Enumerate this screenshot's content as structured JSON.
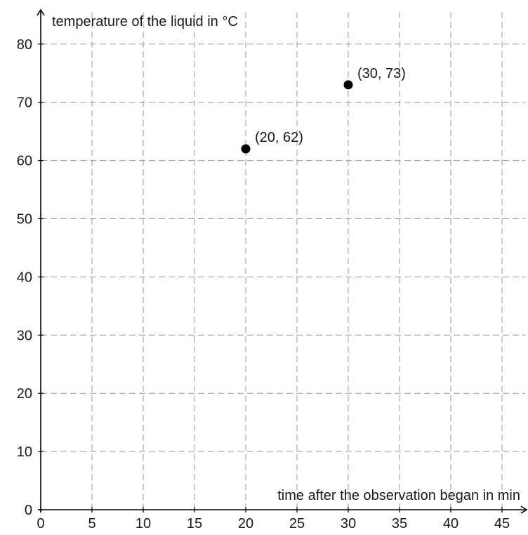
{
  "chart_data": {
    "type": "scatter",
    "title": "",
    "xlabel": "time after the observation began in min",
    "ylabel": "temperature of the liquid in °C",
    "xlim": [
      0,
      47
    ],
    "ylim": [
      0,
      83
    ],
    "x_ticks": [
      0,
      5,
      10,
      15,
      20,
      25,
      30,
      35,
      40,
      45
    ],
    "y_ticks": [
      0,
      10,
      20,
      30,
      40,
      50,
      60,
      70,
      80
    ],
    "x_tick_labels": [
      "0",
      "5",
      "10",
      "15",
      "20",
      "25",
      "30",
      "35",
      "40",
      "45"
    ],
    "y_tick_labels": [
      "0",
      "10",
      "20",
      "30",
      "40",
      "50",
      "60",
      "70",
      "80"
    ],
    "grid": true,
    "grid_style": "dashed",
    "point_color": "#000000",
    "points": [
      {
        "x": 20,
        "y": 62,
        "label": "(20, 62)"
      },
      {
        "x": 30,
        "y": 73,
        "label": "(30, 73)"
      }
    ]
  }
}
